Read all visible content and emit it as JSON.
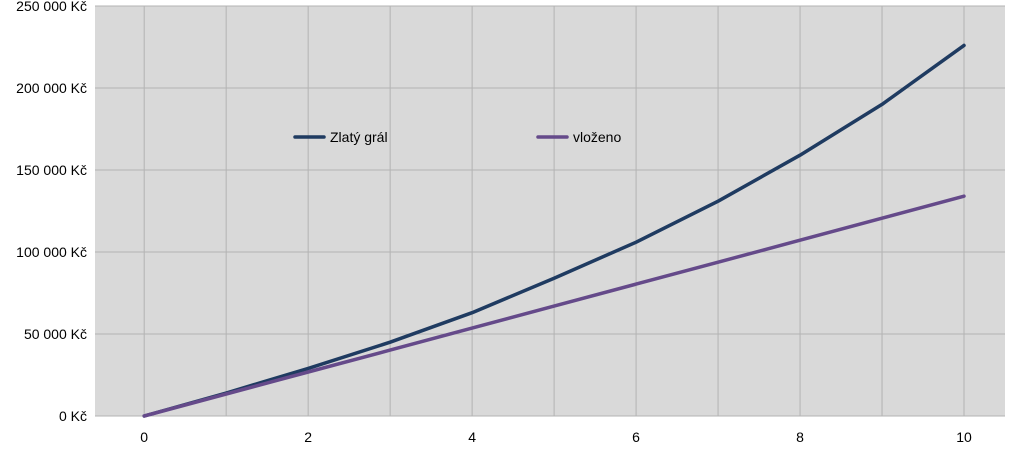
{
  "chart_data": {
    "type": "line",
    "title": "",
    "xlabel": "",
    "ylabel": "",
    "xlim": [
      -0.6,
      10.5
    ],
    "ylim": [
      0,
      250000
    ],
    "x_ticks": [
      0,
      2,
      4,
      6,
      8,
      10
    ],
    "x_tick_labels": [
      "0",
      "2",
      "4",
      "6",
      "8",
      "10"
    ],
    "y_ticks": [
      0,
      50000,
      100000,
      150000,
      200000,
      250000
    ],
    "y_tick_labels": [
      "0 Kč",
      "50 000 Kč",
      "100 000 Kč",
      "150 000 Kč",
      "200 000 Kč",
      "250 000 Kč"
    ],
    "grid": {
      "horizontal": true,
      "vertical": true,
      "vertical_step": 1
    },
    "legend_position": "inside-top",
    "colors": {
      "plot_background": "#d9d9d9",
      "gridline": "#b3b3b3",
      "axis_text": "#000000"
    },
    "series": [
      {
        "name": "Zlatý grál",
        "color": "#1f3b61",
        "x": [
          0,
          1,
          2,
          3,
          4,
          5,
          6,
          7,
          8,
          9,
          10
        ],
        "values": [
          0,
          14000,
          29000,
          45000,
          63000,
          84000,
          106000,
          131000,
          159000,
          190000,
          226000
        ]
      },
      {
        "name": "vloženo",
        "color": "#654a8a",
        "x": [
          0,
          1,
          2,
          3,
          4,
          5,
          6,
          7,
          8,
          9,
          10
        ],
        "values": [
          0,
          13400,
          26800,
          40200,
          53600,
          67000,
          80400,
          93800,
          107200,
          120600,
          134000
        ]
      }
    ]
  }
}
